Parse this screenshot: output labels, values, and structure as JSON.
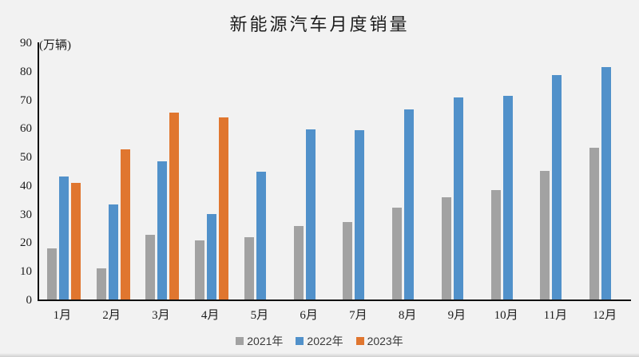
{
  "title": "新能源汽车月度销量",
  "y_axis": {
    "unit_label": "(万辆)",
    "max": 90,
    "ticks": [
      90,
      80,
      70,
      60,
      50,
      40,
      30,
      20,
      10,
      0
    ]
  },
  "x_axis": {
    "months": [
      "1月",
      "2月",
      "3月",
      "4月",
      "5月",
      "6月",
      "7月",
      "8月",
      "9月",
      "10月",
      "11月",
      "12月"
    ]
  },
  "legend": {
    "items": [
      {
        "label": "2021年",
        "color": "#a2a2a2"
      },
      {
        "label": "2022年",
        "color": "#5191ca"
      },
      {
        "label": "2023年",
        "color": "#e0762f"
      }
    ]
  },
  "colors": {
    "background": "#f2f2f2",
    "axis": "#111111",
    "text": "#1c1c1c"
  },
  "chart_data": {
    "type": "bar",
    "title": "新能源汽车月度销量",
    "unit": "万辆",
    "categories": [
      "1月",
      "2月",
      "3月",
      "4月",
      "5月",
      "6月",
      "7月",
      "8月",
      "9月",
      "10月",
      "11月",
      "12月"
    ],
    "series": [
      {
        "name": "2021年",
        "color": "#a2a2a2",
        "values": [
          17.9,
          11.0,
          22.6,
          20.6,
          21.7,
          25.6,
          27.1,
          32.1,
          35.7,
          38.3,
          45.0,
          53.1
        ]
      },
      {
        "name": "2022年",
        "color": "#5191ca",
        "values": [
          43.1,
          33.4,
          48.4,
          29.9,
          44.7,
          59.6,
          59.3,
          66.6,
          70.8,
          71.4,
          78.6,
          81.4
        ]
      },
      {
        "name": "2023年",
        "color": "#e0762f",
        "values": [
          40.8,
          52.5,
          65.3,
          63.6,
          null,
          null,
          null,
          null,
          null,
          null,
          null,
          null
        ]
      }
    ],
    "xlabel": "",
    "ylabel": "(万辆)",
    "ylim": [
      0,
      90
    ],
    "grid": false,
    "legend_position": "bottom"
  }
}
